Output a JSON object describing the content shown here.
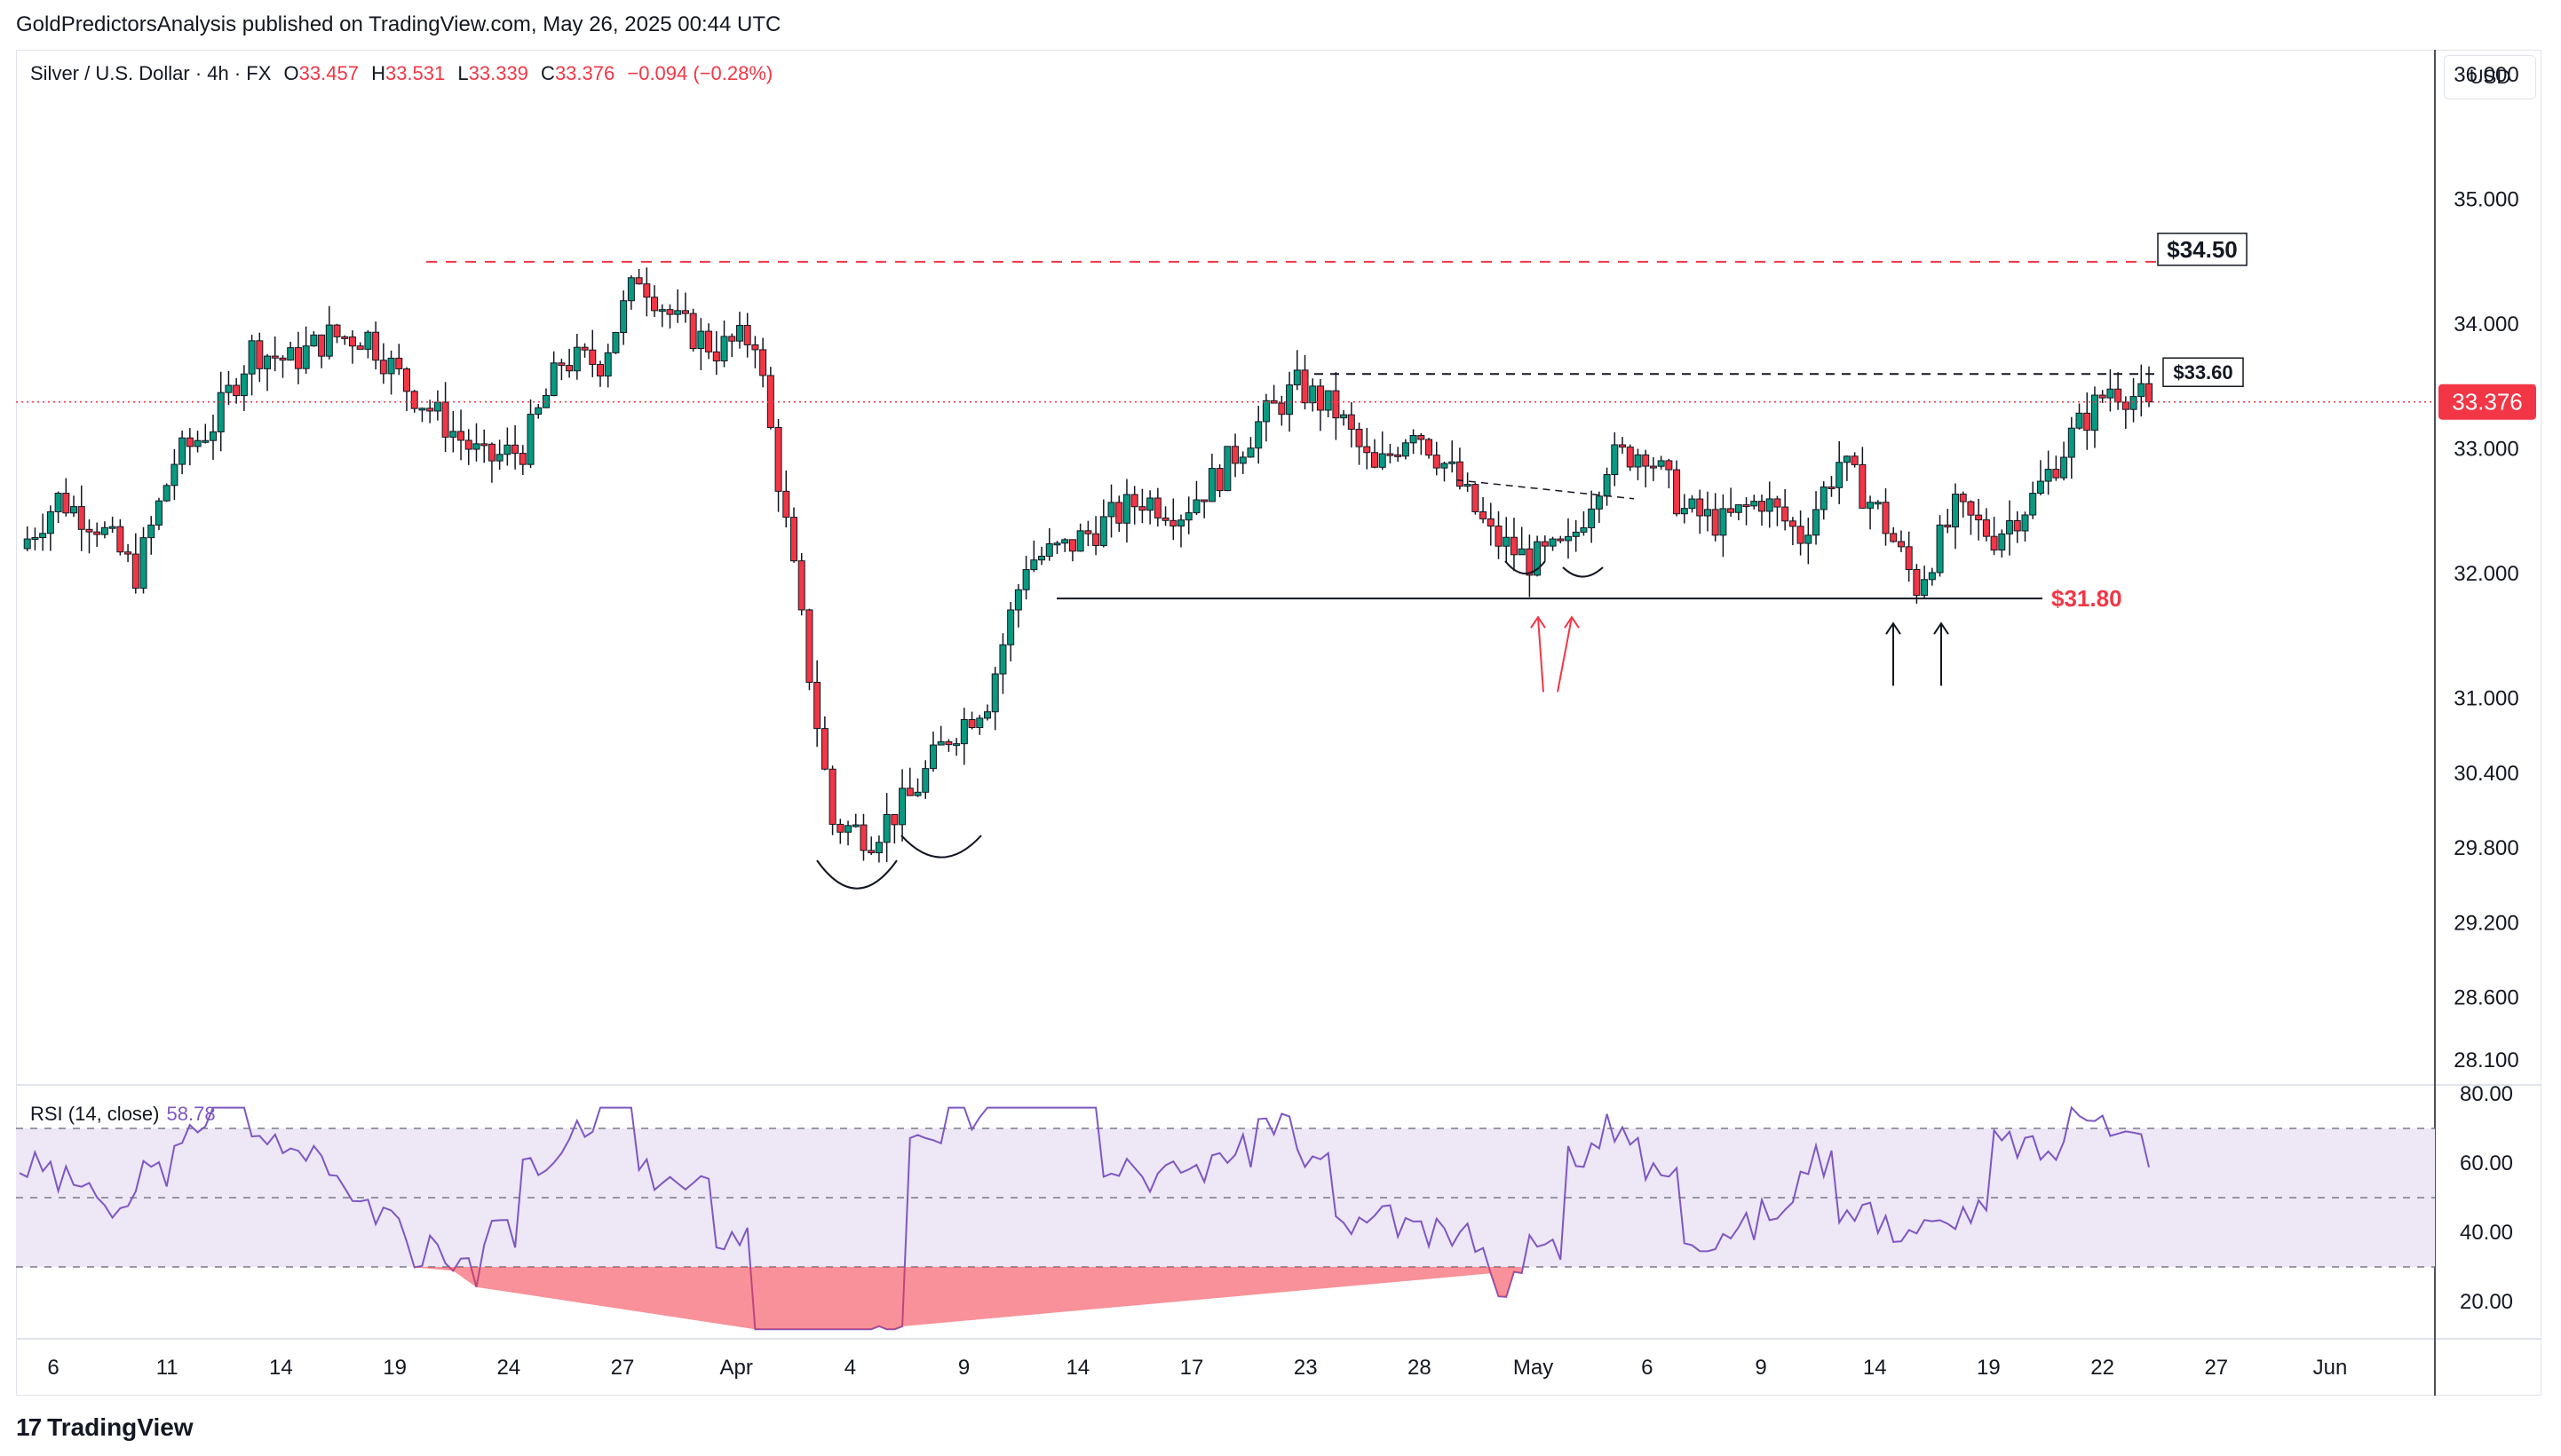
{
  "publish_line": "GoldPredictorsAnalysis published on TradingView.com, May 26, 2025 00:44 UTC",
  "legend": {
    "symbol": "Silver / U.S. Dollar · 4h · FX",
    "o_label": "O",
    "o": "33.457",
    "h_label": "H",
    "h": "33.531",
    "l_label": "L",
    "l": "33.339",
    "c_label": "C",
    "c": "33.376",
    "change": "−0.094 (−0.28%)"
  },
  "currency": "USD",
  "price_axis": [
    "36.000",
    "35.000",
    "34.000",
    "33.000",
    "32.000",
    "31.000",
    "30.400",
    "29.800",
    "29.200",
    "28.600",
    "28.100"
  ],
  "last_price": "33.376",
  "rsi_axis": [
    "80.00",
    "60.00",
    "40.00",
    "20.00"
  ],
  "rsi_legend": {
    "label": "RSI (14, close)",
    "value": "58.78"
  },
  "time_axis": [
    "6",
    "11",
    "14",
    "19",
    "24",
    "27",
    "Apr",
    "4",
    "9",
    "14",
    "17",
    "23",
    "28",
    "May",
    "6",
    "9",
    "14",
    "19",
    "22",
    "27",
    "Jun"
  ],
  "annotations": {
    "resistance_high": "$34.50",
    "resistance_mid": "$33.60",
    "support": "$31.80"
  },
  "brand": {
    "logo": "17",
    "name": "TradingView"
  },
  "colors": {
    "up": "#089981",
    "down": "#f23645",
    "rsi": "#7e57c2",
    "rsi_band": "#ede7f6",
    "annotation_red": "#f23645"
  },
  "chart_data": {
    "type": "candlestick",
    "title": "Silver / U.S. Dollar · 4h · FX",
    "ylim": [
      27.9,
      36.2
    ],
    "support": 31.8,
    "resistance": [
      34.5,
      33.6
    ],
    "close_path": [
      {
        "x": "Mar 6",
        "y": 32.2
      },
      {
        "x": "Mar 7",
        "y": 32.6
      },
      {
        "x": "Mar 10",
        "y": 32.4
      },
      {
        "x": "Mar 11",
        "y": 32.0
      },
      {
        "x": "Mar 12",
        "y": 32.9
      },
      {
        "x": "Mar 13",
        "y": 33.2
      },
      {
        "x": "Mar 14",
        "y": 33.8
      },
      {
        "x": "Mar 17",
        "y": 33.7
      },
      {
        "x": "Mar 18",
        "y": 33.9
      },
      {
        "x": "Mar 19",
        "y": 33.9
      },
      {
        "x": "Mar 20",
        "y": 33.5
      },
      {
        "x": "Mar 21",
        "y": 33.2
      },
      {
        "x": "Mar 24",
        "y": 32.9
      },
      {
        "x": "Mar 25",
        "y": 33.0
      },
      {
        "x": "Mar 26",
        "y": 33.7
      },
      {
        "x": "Mar 27",
        "y": 33.7
      },
      {
        "x": "Mar 28",
        "y": 34.4
      },
      {
        "x": "Mar 31",
        "y": 34.0
      },
      {
        "x": "Apr 1",
        "y": 33.8
      },
      {
        "x": "Apr 2",
        "y": 33.9
      },
      {
        "x": "Apr 3",
        "y": 32.0
      },
      {
        "x": "Apr 4",
        "y": 30.0
      },
      {
        "x": "Apr 7",
        "y": 29.9
      },
      {
        "x": "Apr 8",
        "y": 30.2
      },
      {
        "x": "Apr 9",
        "y": 30.7
      },
      {
        "x": "Apr 10",
        "y": 31.0
      },
      {
        "x": "Apr 11",
        "y": 32.1
      },
      {
        "x": "Apr 14",
        "y": 32.2
      },
      {
        "x": "Apr 15",
        "y": 32.4
      },
      {
        "x": "Apr 16",
        "y": 32.6
      },
      {
        "x": "Apr 17",
        "y": 32.5
      },
      {
        "x": "Apr 21",
        "y": 32.8
      },
      {
        "x": "Apr 22",
        "y": 33.2
      },
      {
        "x": "Apr 23",
        "y": 33.5
      },
      {
        "x": "Apr 24",
        "y": 33.3
      },
      {
        "x": "Apr 25",
        "y": 32.8
      },
      {
        "x": "Apr 28",
        "y": 33.2
      },
      {
        "x": "Apr 29",
        "y": 32.8
      },
      {
        "x": "Apr 30",
        "y": 32.3
      },
      {
        "x": "May 1",
        "y": 32.1
      },
      {
        "x": "May 2",
        "y": 32.2
      },
      {
        "x": "May 5",
        "y": 32.9
      },
      {
        "x": "May 6",
        "y": 33.0
      },
      {
        "x": "May 7",
        "y": 32.5
      },
      {
        "x": "May 8",
        "y": 32.4
      },
      {
        "x": "May 9",
        "y": 32.6
      },
      {
        "x": "May 12",
        "y": 32.3
      },
      {
        "x": "May 13",
        "y": 32.9
      },
      {
        "x": "May 14",
        "y": 32.5
      },
      {
        "x": "May 15",
        "y": 31.9
      },
      {
        "x": "May 16",
        "y": 32.5
      },
      {
        "x": "May 19",
        "y": 32.3
      },
      {
        "x": "May 20",
        "y": 32.6
      },
      {
        "x": "May 21",
        "y": 33.1
      },
      {
        "x": "May 22",
        "y": 33.5
      },
      {
        "x": "May 23",
        "y": 33.376
      }
    ],
    "rsi": {
      "name": "RSI (14, close)",
      "ylim": [
        10,
        80
      ],
      "bands": [
        70,
        50,
        30
      ],
      "last": 58.78,
      "min_label_value": 12
    }
  }
}
